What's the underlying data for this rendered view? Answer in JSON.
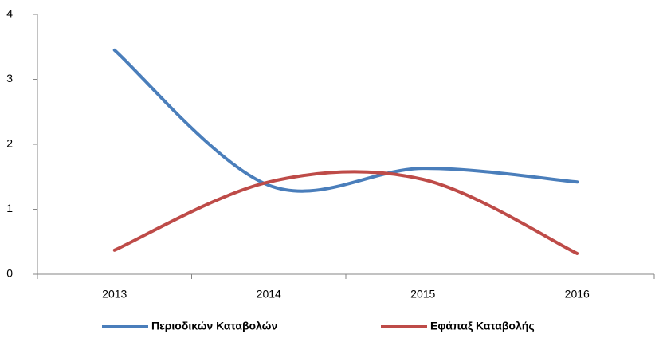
{
  "chart_data": {
    "type": "line",
    "categories": [
      "2013",
      "2014",
      "2015",
      "2016"
    ],
    "series": [
      {
        "name": "Περιοδικών Καταβολών",
        "color": "#4a7ebb",
        "values": [
          3.45,
          1.37,
          1.63,
          1.42
        ]
      },
      {
        "name": "Εφάπαξ Καταβολής",
        "color": "#be4b48",
        "values": [
          0.37,
          1.42,
          1.46,
          0.32
        ]
      }
    ],
    "ylim": [
      0,
      4
    ],
    "yticks": [
      0,
      1,
      2,
      3,
      4
    ],
    "smooth": true,
    "legend": "bottom"
  }
}
